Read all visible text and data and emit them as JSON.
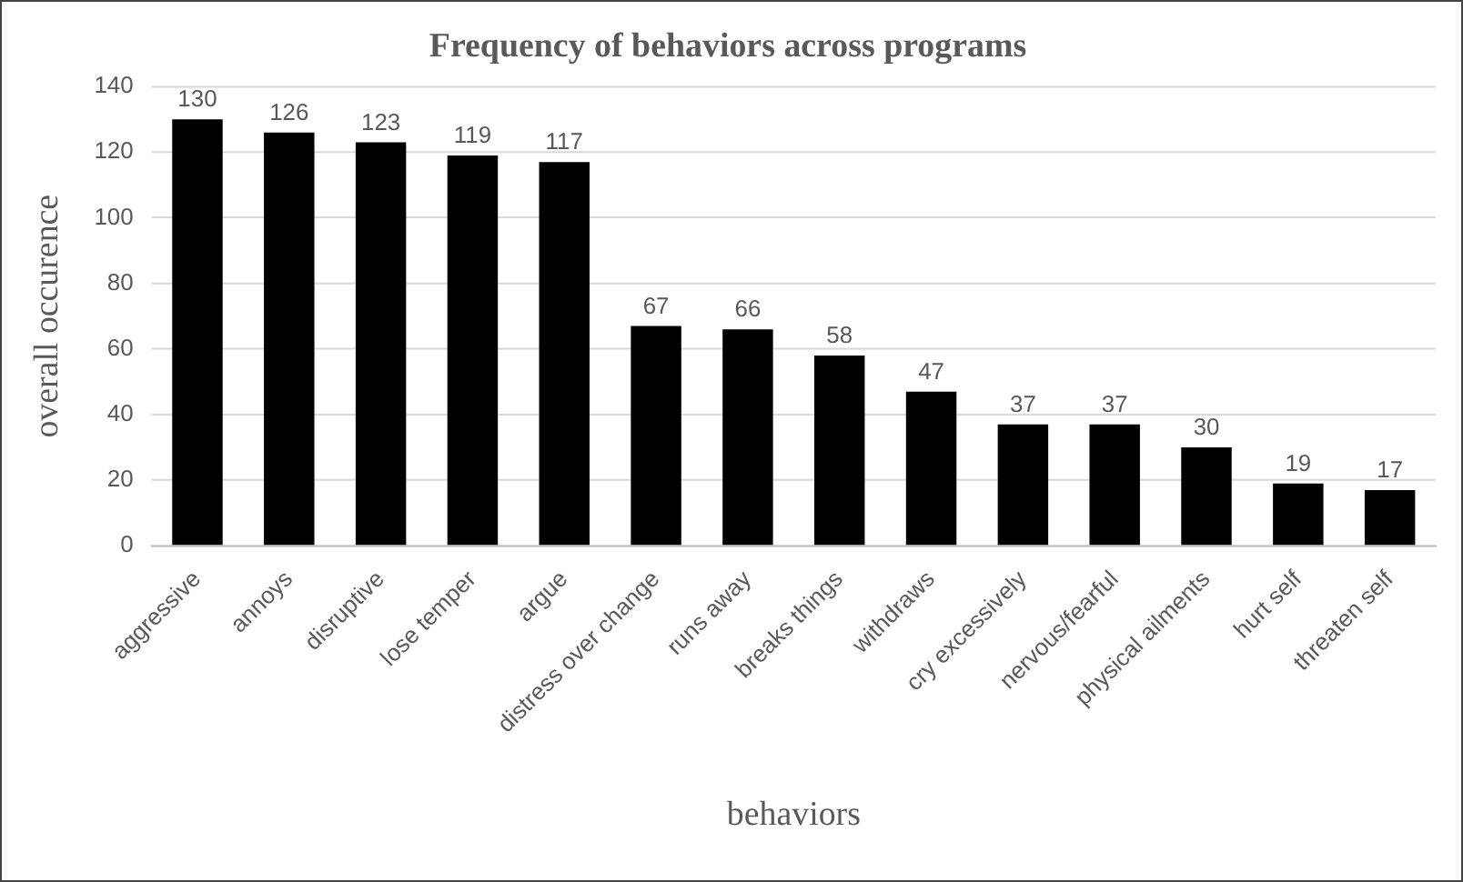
{
  "chart_data": {
    "type": "bar",
    "title": "Frequency of behaviors across programs",
    "xlabel": "behaviors",
    "ylabel": "overall occurence",
    "categories": [
      "aggressive",
      "annoys",
      "disruptive",
      "lose temper",
      "argue",
      "distress over change",
      "runs away",
      "breaks things",
      "withdraws",
      "cry excessively",
      "nervous/fearful",
      "physical ailments",
      "hurt self",
      "threaten self"
    ],
    "values": [
      130,
      126,
      123,
      119,
      117,
      67,
      66,
      58,
      47,
      37,
      37,
      30,
      19,
      17
    ],
    "color": "#000000",
    "ylim": [
      0,
      140
    ],
    "yticks": [
      0,
      20,
      40,
      60,
      80,
      100,
      120,
      140
    ],
    "grid": "y",
    "data_labels": true,
    "legend": false
  }
}
